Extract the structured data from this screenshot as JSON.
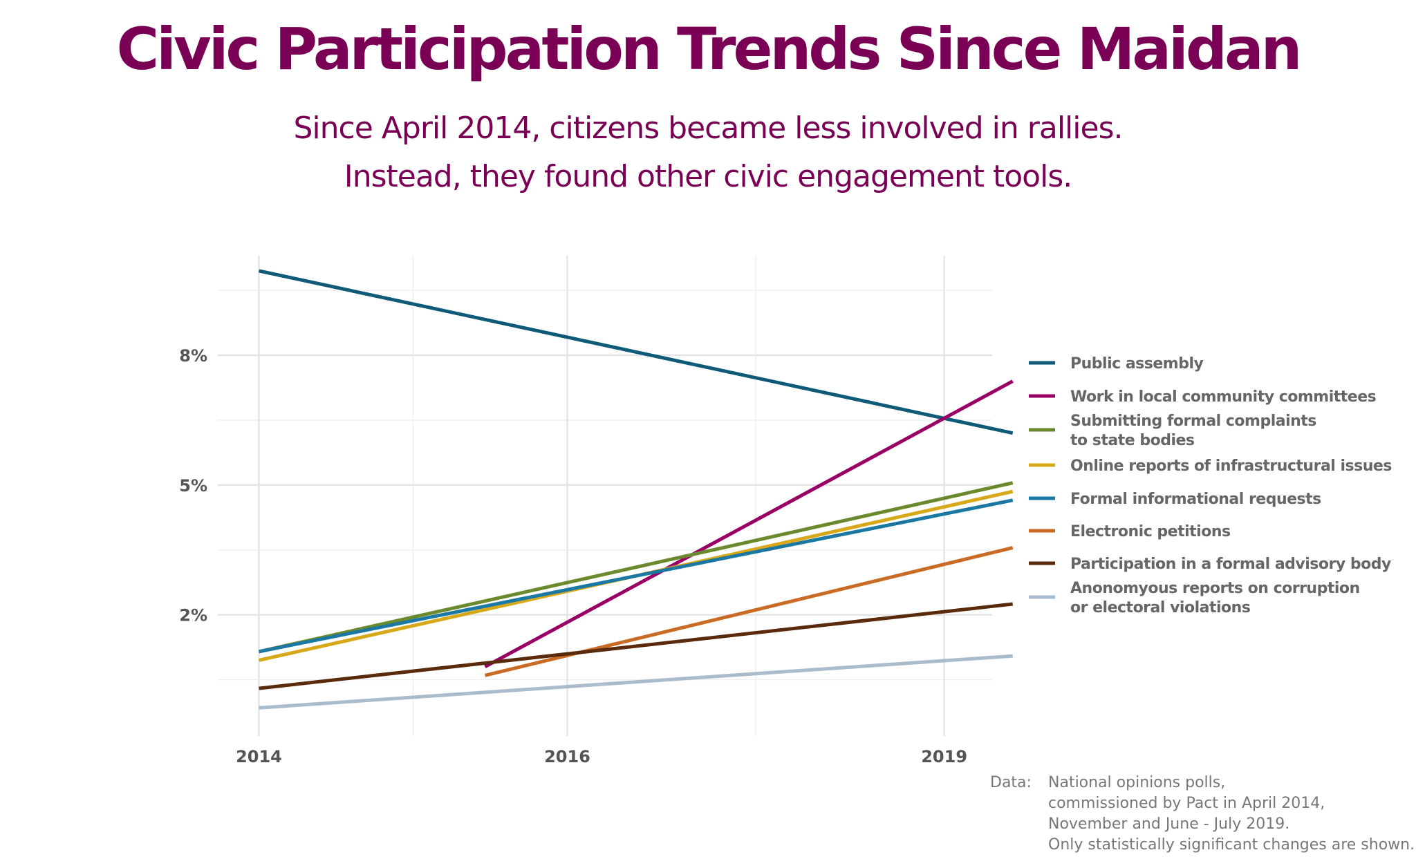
{
  "header": {
    "title": "Civic Participation Trends Since Maidan",
    "subtitle_line1": "Since April 2014, citizens became less involved in rallies.",
    "subtitle_line2": "Instead, they found other civic engagement tools."
  },
  "source": {
    "label": "Data:",
    "lines": [
      "National opinions polls,",
      "commissioned by Pact  in April 2014,",
      "November and June - July 2019.",
      "Only statistically significant changes are shown."
    ]
  },
  "chart_data": {
    "type": "line",
    "title": "Civic Participation Trends Since Maidan",
    "xlabel": "",
    "ylabel": "",
    "xlim": [
      2013.95,
      2019.6
    ],
    "ylim": [
      -0.8,
      10.3
    ],
    "x_ticks": [
      {
        "value": 2014.25,
        "label": "2014"
      },
      {
        "value": 2016.5,
        "label": "2016"
      },
      {
        "value": 2019.25,
        "label": "2019"
      }
    ],
    "y_ticks": [
      {
        "value": 2,
        "label": "2%"
      },
      {
        "value": 5,
        "label": "5%"
      },
      {
        "value": 8,
        "label": "8%"
      }
    ],
    "grid": true,
    "legend_position": "right",
    "series": [
      {
        "name": "Public assembly",
        "color": "#0e5a78",
        "x": [
          2014.25,
          2019.75
        ],
        "y": [
          9.95,
          6.2
        ]
      },
      {
        "name": "Work in local community committees",
        "color": "#990066",
        "x": [
          2015.9,
          2019.75
        ],
        "y": [
          0.8,
          7.4
        ]
      },
      {
        "name": "Submitting formal complaints to state bodies",
        "color": "#6b8a2e",
        "x": [
          2014.25,
          2019.75
        ],
        "y": [
          1.15,
          5.05
        ]
      },
      {
        "name": "Online reports of infrastructural issues",
        "color": "#d7a91a",
        "x": [
          2014.25,
          2019.75
        ],
        "y": [
          0.95,
          4.85
        ]
      },
      {
        "name": "Formal informational requests",
        "color": "#1a78a3",
        "x": [
          2014.25,
          2019.75
        ],
        "y": [
          1.15,
          4.65
        ]
      },
      {
        "name": "Electronic petitions",
        "color": "#c96b25",
        "x": [
          2015.9,
          2019.75
        ],
        "y": [
          0.6,
          3.55
        ]
      },
      {
        "name": "Participation in a formal advisory body",
        "color": "#5a2a0c",
        "x": [
          2014.25,
          2019.75
        ],
        "y": [
          0.3,
          2.25
        ]
      },
      {
        "name": "Anonomyous reports on corruption or electoral violations",
        "color": "#aabbcc",
        "x": [
          2014.25,
          2019.75
        ],
        "y": [
          -0.15,
          1.05
        ]
      }
    ]
  }
}
